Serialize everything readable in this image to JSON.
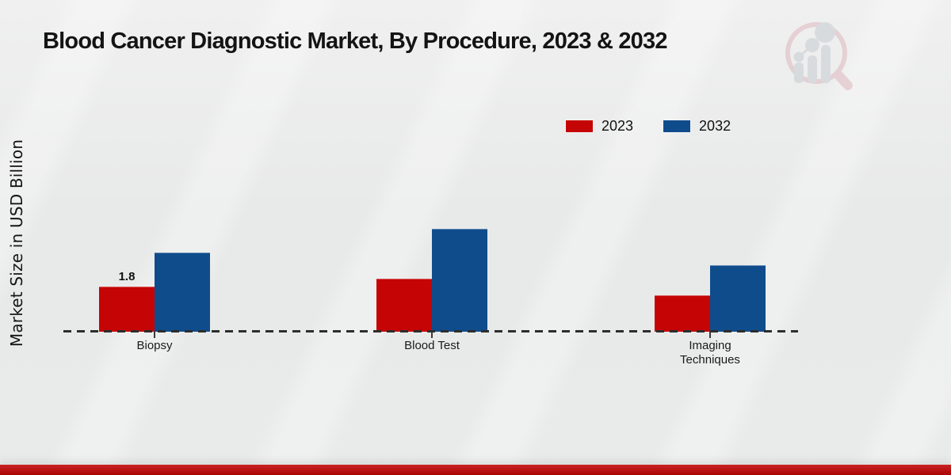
{
  "title": "Blood Cancer Diagnostic Market, By Procedure, 2023 & 2032",
  "ylabel": "Market Size in USD Billion",
  "legend": {
    "items": [
      {
        "label": "2023",
        "color": "#c50505"
      },
      {
        "label": "2032",
        "color": "#0f4c8c"
      }
    ]
  },
  "chart_data": {
    "type": "bar",
    "categories": [
      "Biopsy",
      "Blood Test",
      "Imaging Techniques"
    ],
    "series": [
      {
        "name": "2023",
        "color": "#c50505",
        "values": [
          1.8,
          2.1,
          1.45
        ]
      },
      {
        "name": "2032",
        "color": "#0f4c8c",
        "values": [
          3.15,
          4.1,
          2.65
        ]
      }
    ],
    "bar_labels": [
      {
        "series_index": 0,
        "category_index": 0,
        "text": "1.8"
      }
    ],
    "ylim": [
      0,
      4.5
    ],
    "grid": false,
    "legend_position": "top-right",
    "baseline_style": "dashed"
  },
  "footer": {
    "accent_color": "#c30505"
  },
  "watermark": {
    "icon": "magnifier-bar-chart-logo"
  }
}
